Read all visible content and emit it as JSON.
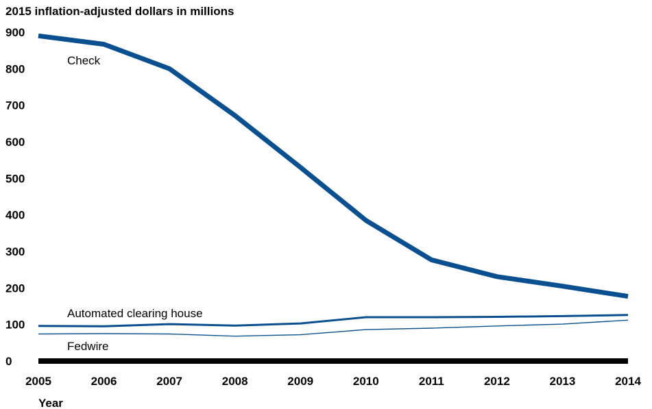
{
  "chart_data": {
    "type": "line",
    "ylabel": "2015 inflation-adjusted dollars in millions",
    "xlabel": "Year",
    "x": [
      2005,
      2006,
      2007,
      2008,
      2009,
      2010,
      2011,
      2012,
      2013,
      2014
    ],
    "ylim": [
      0,
      900
    ],
    "yticks": [
      0,
      100,
      200,
      300,
      400,
      500,
      600,
      700,
      800,
      900
    ],
    "grid": false,
    "series": [
      {
        "name": "Check",
        "color": "#0a4f8f",
        "values": [
          890,
          867,
          800,
          672,
          530,
          385,
          277,
          231,
          205,
          177
        ]
      },
      {
        "name": "Automated clearing house",
        "color": "#0a4f8f",
        "values": [
          96,
          95,
          101,
          97,
          103,
          120,
          120,
          121,
          123,
          126
        ]
      },
      {
        "name": "Fedwire",
        "color": "#0a4f8f",
        "values": [
          74,
          75,
          74,
          68,
          72,
          86,
          90,
          96,
          101,
          112
        ]
      }
    ]
  }
}
